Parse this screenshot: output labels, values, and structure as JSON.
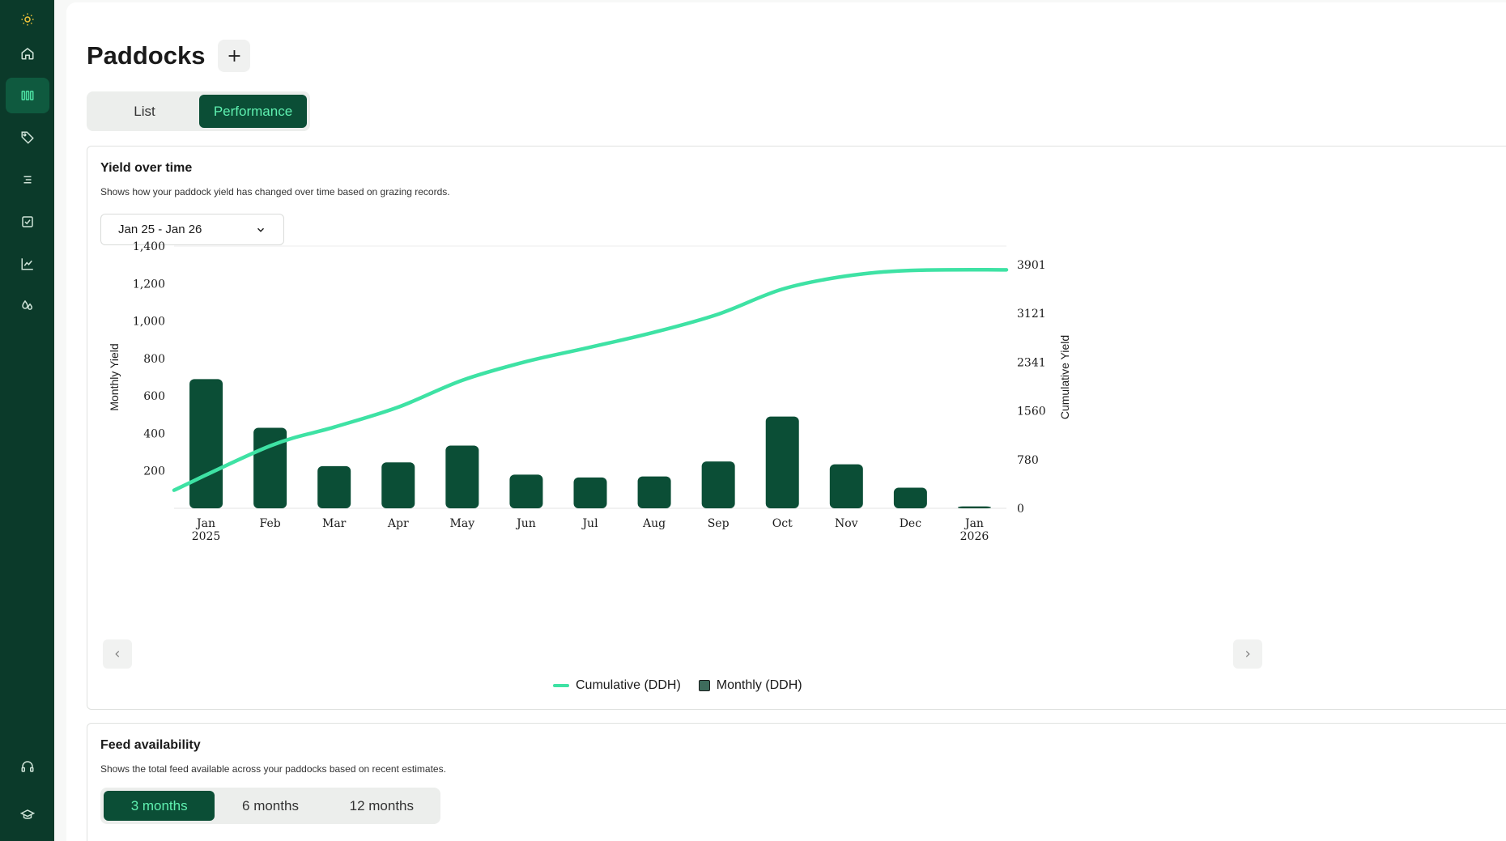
{
  "sidebar": {
    "items": [
      {
        "name": "sun-logo-icon"
      },
      {
        "name": "home-icon"
      },
      {
        "name": "paddocks-icon",
        "active": true
      },
      {
        "name": "tag-icon"
      },
      {
        "name": "list-icon"
      },
      {
        "name": "checkbox-icon"
      },
      {
        "name": "chart-icon"
      },
      {
        "name": "droplets-icon"
      }
    ],
    "bottom_items": [
      {
        "name": "headset-icon"
      },
      {
        "name": "graduation-cap-icon"
      }
    ]
  },
  "header": {
    "title": "Paddocks",
    "add_label": "+"
  },
  "view_tabs": [
    {
      "label": "List",
      "active": false
    },
    {
      "label": "Performance",
      "active": true
    }
  ],
  "yield_card": {
    "title": "Yield over time",
    "subtitle": "Shows how your paddock yield has changed over time based on grazing records.",
    "range_label": "Jan 25 - Jan 26",
    "legend": {
      "cumulative": "Cumulative (DDH)",
      "monthly": "Monthly (DDH)"
    }
  },
  "chart_data": {
    "type": "bar",
    "categories": [
      "Jan 2025",
      "Feb",
      "Mar",
      "Apr",
      "May",
      "Jun",
      "Jul",
      "Aug",
      "Sep",
      "Oct",
      "Nov",
      "Dec",
      "Jan 2026"
    ],
    "x_tick_labels": [
      [
        "Jan",
        "2025"
      ],
      [
        "Feb"
      ],
      [
        "Mar"
      ],
      [
        "Apr"
      ],
      [
        "May"
      ],
      [
        "Jun"
      ],
      [
        "Jul"
      ],
      [
        "Aug"
      ],
      [
        "Sep"
      ],
      [
        "Oct"
      ],
      [
        "Nov"
      ],
      [
        "Dec"
      ],
      [
        "Jan",
        "2026"
      ]
    ],
    "series": [
      {
        "name": "Monthly (DDH)",
        "type": "bar",
        "axis": "left",
        "color": "#0b4e36",
        "values": [
          690,
          430,
          225,
          245,
          335,
          180,
          165,
          170,
          250,
          490,
          235,
          110,
          10
        ]
      },
      {
        "name": "Cumulative (DDH)",
        "type": "line",
        "axis": "right",
        "color": "#3ee2a4",
        "values": [
          290,
          1000,
          1300,
          1620,
          2050,
          2350,
          2580,
          2820,
          3110,
          3510,
          3720,
          3810,
          3820
        ]
      }
    ],
    "ylabel": "Monthly Yield",
    "y2label": "Cumulative Yield",
    "ylim": [
      0,
      1400
    ],
    "y_ticks": [
      200,
      400,
      600,
      800,
      1000,
      1200,
      1400
    ],
    "y_tick_labels": [
      "200",
      "400",
      "600",
      "800",
      "1,000",
      "1,200",
      "1,400"
    ],
    "y2lim": [
      0,
      4200
    ],
    "y2_ticks": [
      0,
      780,
      1560,
      2341,
      3121,
      3901
    ],
    "y2_tick_labels": [
      "0",
      "780",
      "1560",
      "2341",
      "3121",
      "3901"
    ],
    "legend_position": "bottom-center"
  },
  "feed_card": {
    "title": "Feed availability",
    "subtitle": "Shows the total feed available across your paddocks based on recent estimates.",
    "periods": [
      {
        "label": "3 months",
        "active": true
      },
      {
        "label": "6 months",
        "active": false
      },
      {
        "label": "12 months",
        "active": false
      }
    ]
  }
}
